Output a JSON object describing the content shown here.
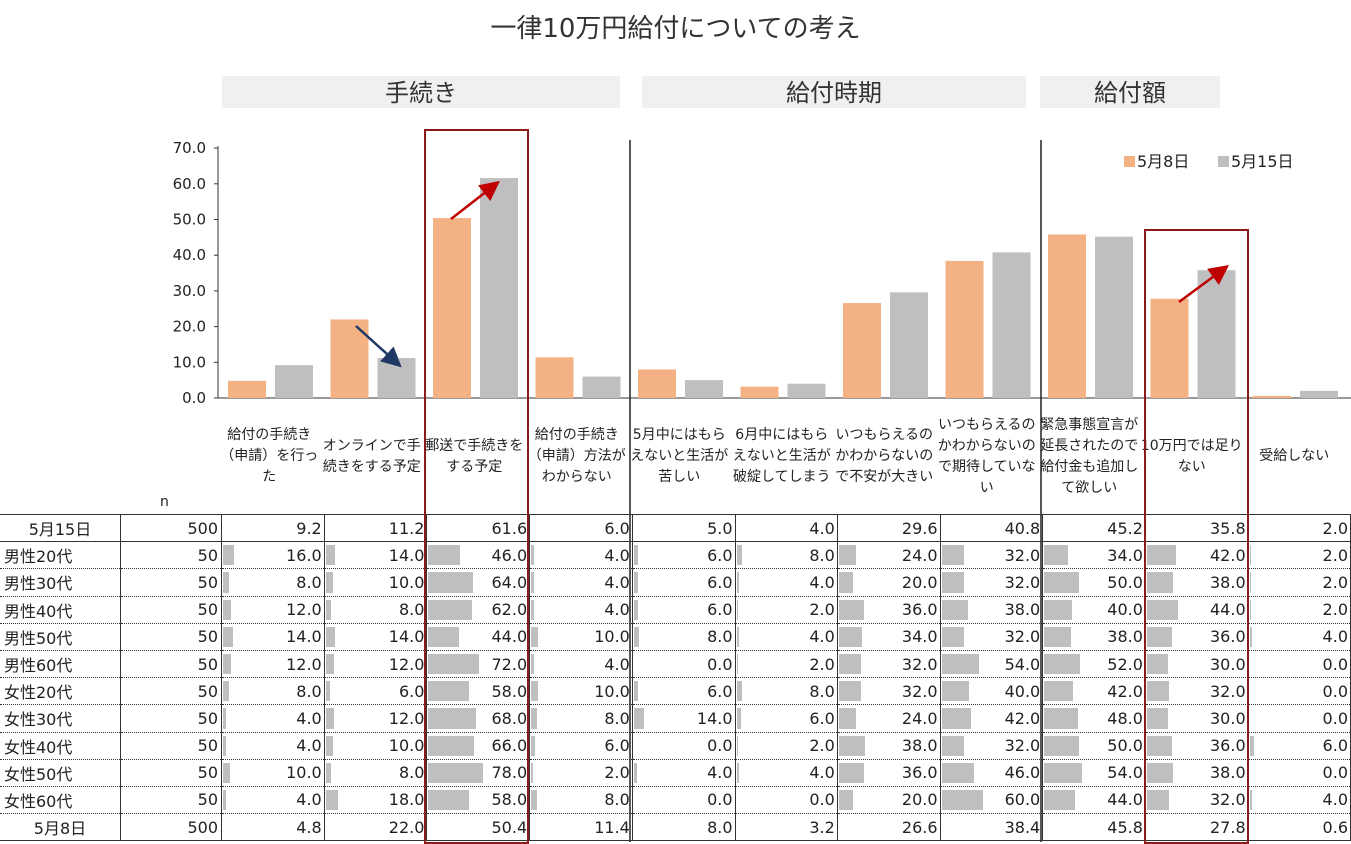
{
  "title": "一律10万円給付についての考え",
  "groups": [
    "手続き",
    "給付時期",
    "給付額"
  ],
  "legend": [
    "5月8日",
    "5月15日"
  ],
  "n_label": "n",
  "y_ticks": [
    "70.0",
    "60.0",
    "50.0",
    "40.0",
    "30.0",
    "20.0",
    "10.0",
    "0.0"
  ],
  "categories": [
    "給付の手続き（申請）を行った",
    "オンラインで手続きをする予定",
    "郵送で手続きをする予定",
    "給付の手続き（申請）方法がわからない",
    "5月中にはもらえないと生活が苦しい",
    "6月中にはもらえないと生活が破綻してしまう",
    "いつもらえるのかわからないので不安が大きい",
    "いつもらえるのかわからないので期待していない",
    "緊急事態宣言が延長されたので給付金も追加して欲しい",
    "10万円では足りない",
    "受給しない"
  ],
  "colors": {
    "may8": "#f4b183",
    "may15": "#bfbfbf",
    "highlight": "#8b1a1a",
    "arrow_up": "#c00000",
    "arrow_down": "#1f3864"
  },
  "chart_data": {
    "type": "bar",
    "categories": [
      "給付の手続き（申請）を行った",
      "オンラインで手続きをする予定",
      "郵送で手続きをする予定",
      "給付の手続き（申請）方法がわからない",
      "5月中にはもらえないと生活が苦しい",
      "6月中にはもらえないと生活が破綻してしまう",
      "いつもらえるのかわからないので不安が大きい",
      "いつもらえるのかわからないので期待していない",
      "緊急事態宣言が延長されたので給付金も追加して欲しい",
      "10万円では足りない",
      "受給しない"
    ],
    "series": [
      {
        "name": "5月8日",
        "values": [
          4.8,
          22.0,
          50.4,
          11.4,
          8.0,
          3.2,
          26.6,
          38.4,
          45.8,
          27.8,
          0.6
        ]
      },
      {
        "name": "5月15日",
        "values": [
          9.2,
          11.2,
          61.6,
          6.0,
          5.0,
          4.0,
          29.6,
          40.8,
          45.2,
          35.8,
          2.0
        ]
      }
    ],
    "ylim": [
      0,
      70
    ],
    "legend": "top-right",
    "title": "一律10万円給付についての考え"
  },
  "table": {
    "rows": [
      {
        "label": "5月15日",
        "n": "500",
        "values": [
          "9.2",
          "11.2",
          "61.6",
          "6.0",
          "5.0",
          "4.0",
          "29.6",
          "40.8",
          "45.2",
          "35.8",
          "2.0"
        ]
      },
      {
        "label": "男性20代",
        "n": "50",
        "values": [
          "16.0",
          "14.0",
          "46.0",
          "4.0",
          "6.0",
          "8.0",
          "24.0",
          "32.0",
          "34.0",
          "42.0",
          "2.0"
        ]
      },
      {
        "label": "男性30代",
        "n": "50",
        "values": [
          "8.0",
          "10.0",
          "64.0",
          "4.0",
          "6.0",
          "4.0",
          "20.0",
          "32.0",
          "50.0",
          "38.0",
          "2.0"
        ]
      },
      {
        "label": "男性40代",
        "n": "50",
        "values": [
          "12.0",
          "8.0",
          "62.0",
          "4.0",
          "6.0",
          "2.0",
          "36.0",
          "38.0",
          "40.0",
          "44.0",
          "2.0"
        ]
      },
      {
        "label": "男性50代",
        "n": "50",
        "values": [
          "14.0",
          "14.0",
          "44.0",
          "10.0",
          "8.0",
          "4.0",
          "34.0",
          "32.0",
          "38.0",
          "36.0",
          "4.0"
        ]
      },
      {
        "label": "男性60代",
        "n": "50",
        "values": [
          "12.0",
          "12.0",
          "72.0",
          "4.0",
          "0.0",
          "2.0",
          "32.0",
          "54.0",
          "52.0",
          "30.0",
          "0.0"
        ]
      },
      {
        "label": "女性20代",
        "n": "50",
        "values": [
          "8.0",
          "6.0",
          "58.0",
          "10.0",
          "6.0",
          "8.0",
          "32.0",
          "40.0",
          "42.0",
          "32.0",
          "0.0"
        ]
      },
      {
        "label": "女性30代",
        "n": "50",
        "values": [
          "4.0",
          "12.0",
          "68.0",
          "8.0",
          "14.0",
          "6.0",
          "24.0",
          "42.0",
          "48.0",
          "30.0",
          "0.0"
        ]
      },
      {
        "label": "女性40代",
        "n": "50",
        "values": [
          "4.0",
          "10.0",
          "66.0",
          "6.0",
          "0.0",
          "2.0",
          "38.0",
          "32.0",
          "50.0",
          "36.0",
          "6.0"
        ]
      },
      {
        "label": "女性50代",
        "n": "50",
        "values": [
          "10.0",
          "8.0",
          "78.0",
          "2.0",
          "4.0",
          "4.0",
          "36.0",
          "46.0",
          "54.0",
          "38.0",
          "0.0"
        ]
      },
      {
        "label": "女性60代",
        "n": "50",
        "values": [
          "4.0",
          "18.0",
          "58.0",
          "8.0",
          "0.0",
          "0.0",
          "20.0",
          "60.0",
          "44.0",
          "32.0",
          "4.0"
        ]
      },
      {
        "label": "5月8日",
        "n": "500",
        "values": [
          "4.8",
          "22.0",
          "50.4",
          "11.4",
          "8.0",
          "3.2",
          "26.6",
          "38.4",
          "45.8",
          "27.8",
          "0.6"
        ]
      }
    ]
  }
}
